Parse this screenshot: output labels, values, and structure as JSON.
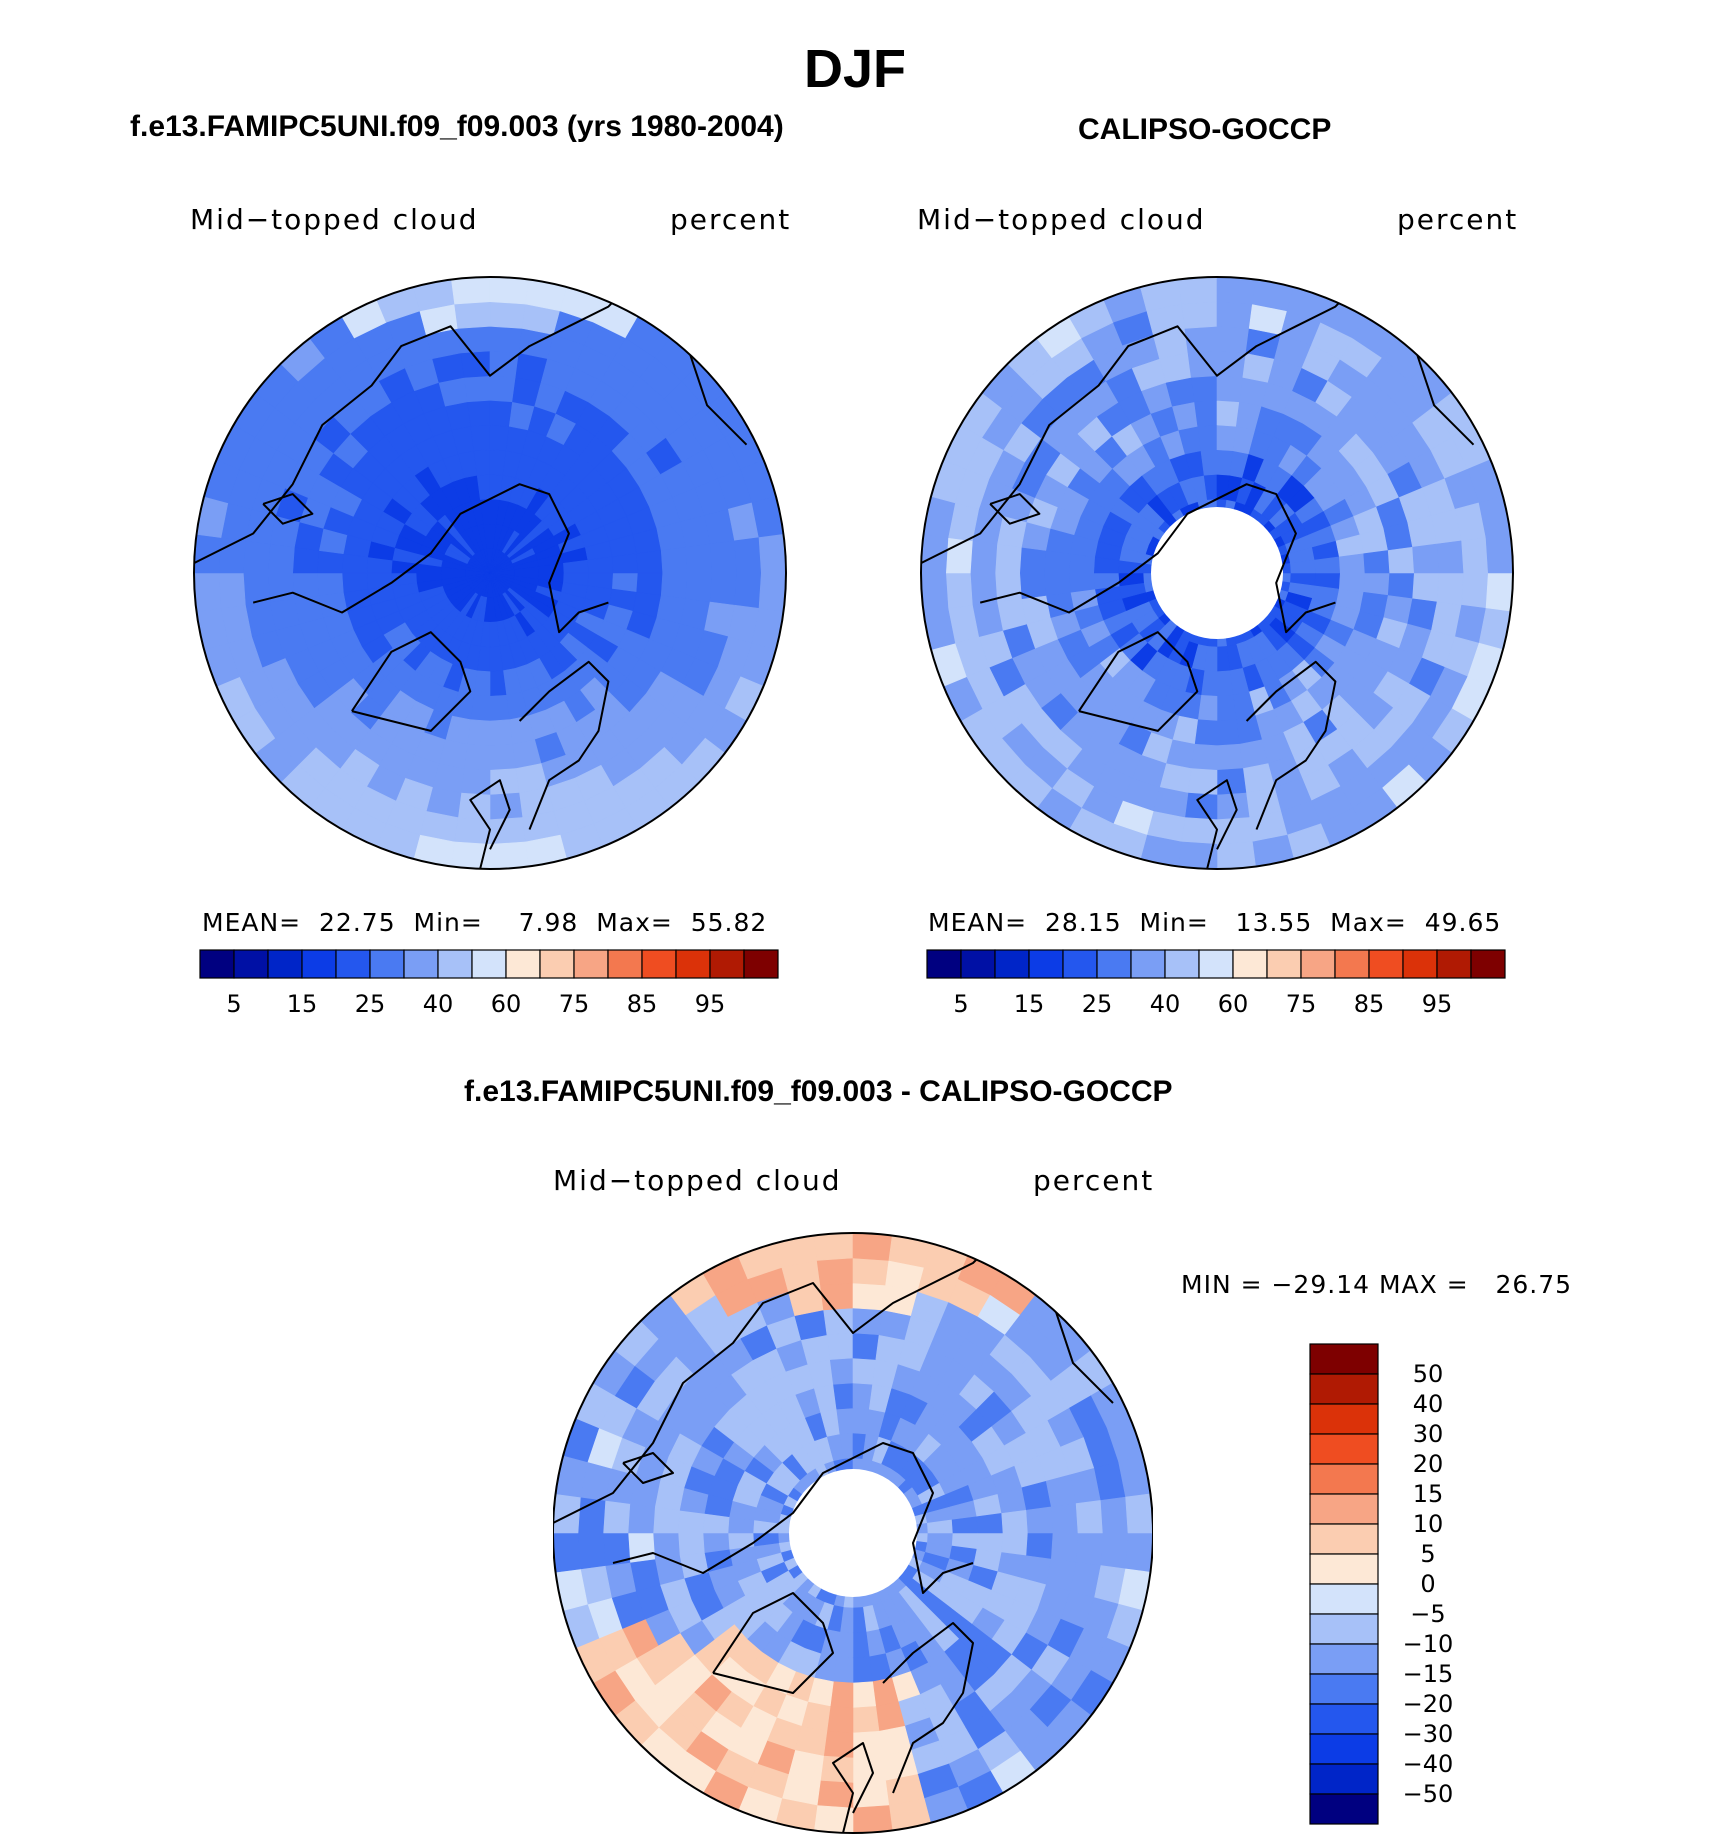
{
  "figure": {
    "title": "DJF"
  },
  "colors": {
    "scale17": [
      "#000080",
      "#0010a5",
      "#0025c8",
      "#0c3ce6",
      "#2457ee",
      "#4a7af2",
      "#7a9ef5",
      "#a7c1f8",
      "#d3e3fb",
      "#fde8d6",
      "#fbcdb1",
      "#f7a585",
      "#f3784f",
      "#ef4d21",
      "#db3209",
      "#b01a03",
      "#7e0000"
    ],
    "diff16": [
      "#000080",
      "#0010a5",
      "#0025c8",
      "#0c3ce6",
      "#2457ee",
      "#4a7af2",
      "#7a9ef5",
      "#a7c1f8",
      "#d3e3fb",
      "#fde8d6",
      "#fbcdb1",
      "#f7a585",
      "#f3784f",
      "#ef4d21",
      "#db3209",
      "#b01a03",
      "#7e0000"
    ]
  },
  "panels": [
    {
      "title": "f.e13.FAMIPC5UNI.f09_f09.003 (yrs 1980-2004)",
      "left_label": "Mid−topped cloud",
      "right_label": "percent",
      "stats": {
        "mean_label": "MEAN=",
        "mean": "22.75",
        "min_label": "Min=",
        "min": "7.98",
        "max_label": "Max=",
        "max": "55.82"
      },
      "colorbar_ticks": [
        "5",
        "15",
        "25",
        "40",
        "60",
        "75",
        "85",
        "95"
      ]
    },
    {
      "title": "CALIPSO-GOCCP",
      "left_label": "Mid−topped cloud",
      "right_label": "percent",
      "stats": {
        "mean_label": "MEAN=",
        "mean": "28.15",
        "min_label": "Min=",
        "min": "13.55",
        "max_label": "Max=",
        "max": "49.65"
      },
      "colorbar_ticks": [
        "5",
        "15",
        "25",
        "40",
        "60",
        "75",
        "85",
        "95"
      ]
    },
    {
      "title": "f.e13.FAMIPC5UNI.f09_f09.003 - CALIPSO-GOCCP",
      "left_label": "Mid−topped cloud",
      "right_label": "percent",
      "minmax": "MIN = −29.14 MAX =   26.75",
      "colorbar_ticks": [
        "50",
        "40",
        "30",
        "20",
        "15",
        "10",
        "5",
        "0",
        "−5",
        "−10",
        "−15",
        "−20",
        "−30",
        "−40",
        "−50"
      ]
    }
  ],
  "chart_data": [
    {
      "type": "heatmap",
      "title": "f.e13.FAMIPC5UNI.f09_f09.003 (yrs 1980-2004)",
      "projection": "north polar stereographic",
      "variable": "Mid−topped cloud",
      "units": "percent",
      "mean": 22.75,
      "min": 7.98,
      "max": 55.82,
      "contour_levels": [
        5,
        10,
        15,
        20,
        25,
        30,
        40,
        50,
        60,
        70,
        75,
        80,
        85,
        90,
        95,
        100
      ],
      "colorbar_tick_labels": [
        5,
        15,
        25,
        40,
        60,
        75,
        85,
        95
      ]
    },
    {
      "type": "heatmap",
      "title": "CALIPSO-GOCCP",
      "projection": "north polar stereographic",
      "variable": "Mid−topped cloud",
      "units": "percent",
      "mean": 28.15,
      "min": 13.55,
      "max": 49.65,
      "contour_levels": [
        5,
        10,
        15,
        20,
        25,
        30,
        40,
        50,
        60,
        70,
        75,
        80,
        85,
        90,
        95,
        100
      ],
      "colorbar_tick_labels": [
        5,
        15,
        25,
        40,
        60,
        75,
        85,
        95
      ]
    },
    {
      "type": "heatmap",
      "title": "f.e13.FAMIPC5UNI.f09_f09.003 - CALIPSO-GOCCP",
      "projection": "north polar stereographic",
      "variable": "Mid−topped cloud",
      "units": "percent",
      "min": -29.14,
      "max": 26.75,
      "contour_levels": [
        50,
        40,
        30,
        20,
        15,
        10,
        5,
        0,
        -5,
        -10,
        -15,
        -20,
        -30,
        -40,
        -50
      ]
    }
  ]
}
